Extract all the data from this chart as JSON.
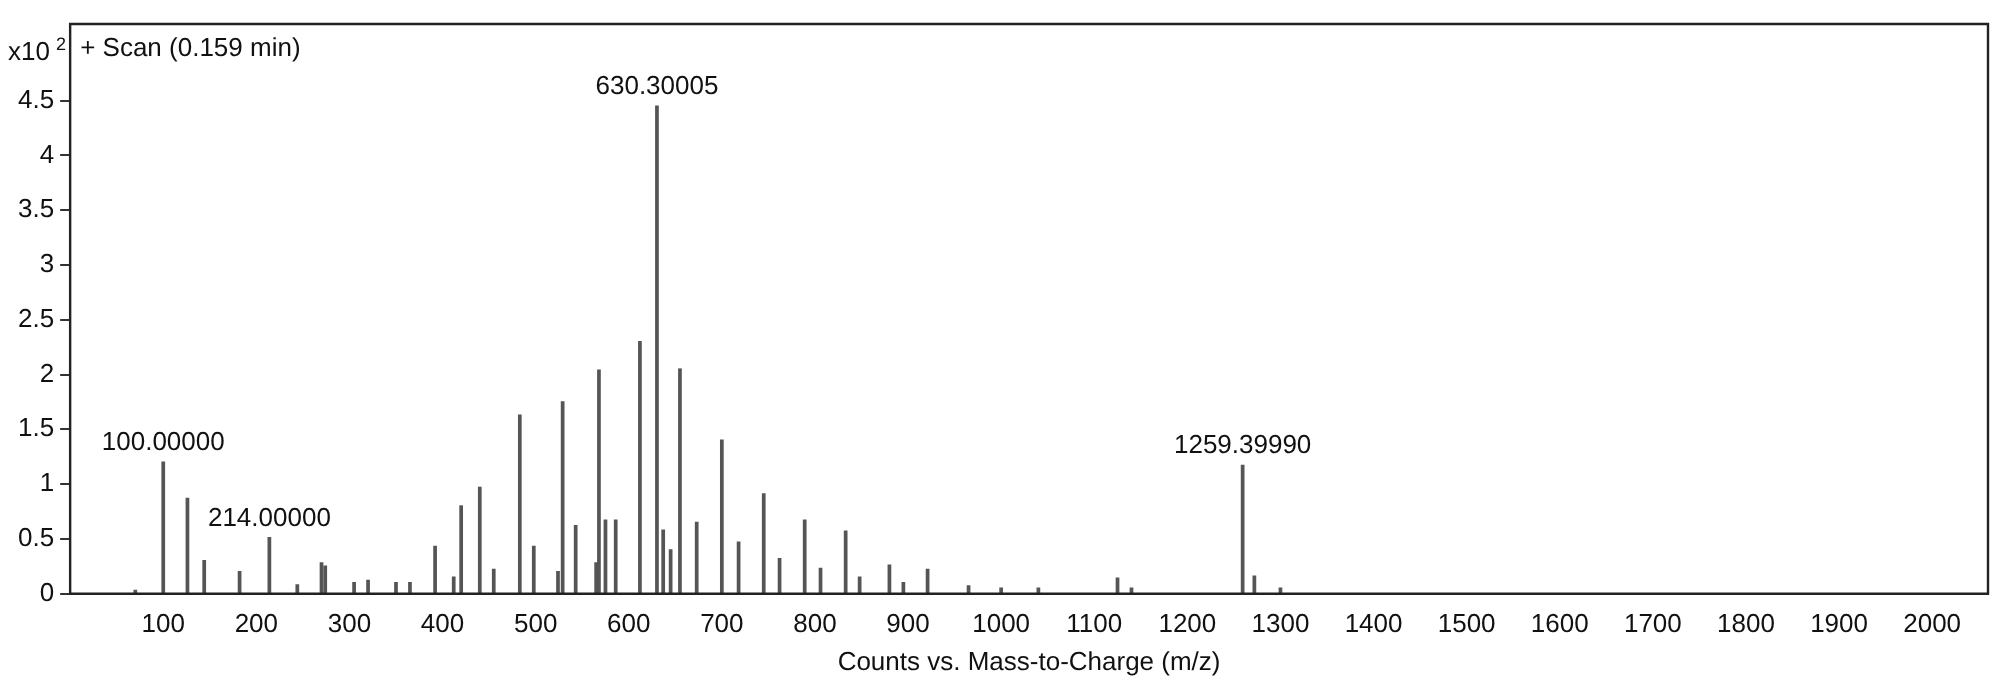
{
  "chart_data": {
    "type": "bar",
    "title": "+ Scan (0.159 min)",
    "xlabel": "Counts vs. Mass-to-Charge (m/z)",
    "ylabel": "x10$^{2}$",
    "x": [
      70,
      100,
      126,
      144,
      182,
      214,
      244,
      270,
      274,
      305,
      320,
      350,
      365,
      392,
      412,
      420,
      440,
      455,
      483,
      498,
      524,
      529,
      543,
      565,
      568,
      575,
      586,
      612,
      630.3,
      637,
      645,
      655,
      673,
      700,
      718,
      745,
      762,
      789,
      806,
      833,
      848,
      880,
      895,
      921,
      965,
      1000,
      1040,
      1125,
      1140,
      1259.4,
      1272,
      1300
    ],
    "values": [
      0.03,
      1.2,
      0.87,
      0.3,
      0.2,
      0.51,
      0.08,
      0.28,
      0.25,
      0.1,
      0.12,
      0.1,
      0.1,
      0.43,
      0.15,
      0.8,
      0.97,
      0.22,
      1.63,
      0.43,
      0.2,
      1.75,
      0.62,
      0.28,
      2.04,
      0.67,
      0.67,
      2.3,
      4.45,
      0.58,
      0.4,
      2.05,
      0.65,
      1.4,
      0.47,
      0.91,
      0.32,
      0.67,
      0.23,
      0.57,
      0.15,
      0.26,
      0.1,
      0.22,
      0.07,
      0.05,
      0.05,
      0.14,
      0.05,
      1.17,
      0.16,
      0.05
    ],
    "color": "#555555",
    "xlim": [
      0,
      2060
    ],
    "xticks": [
      100,
      200,
      300,
      400,
      500,
      600,
      700,
      800,
      900,
      1000,
      1100,
      1200,
      1300,
      1400,
      1500,
      1600,
      1700,
      1800,
      1900,
      2000
    ],
    "ylim": [
      0,
      5.2
    ],
    "yticks": [
      0,
      0.5,
      1,
      1.5,
      2,
      2.5,
      3,
      3.5,
      4,
      4.5
    ],
    "grid": false,
    "legend": false,
    "annotations": [
      {
        "text": "100.00000",
        "x": 100,
        "y": 1.2
      },
      {
        "text": "214.00000",
        "x": 214,
        "y": 0.51
      },
      {
        "text": "630.30005",
        "x": 630.3,
        "y": 4.45
      },
      {
        "text": "1259.39990",
        "x": 1259.4,
        "y": 1.17
      }
    ]
  }
}
